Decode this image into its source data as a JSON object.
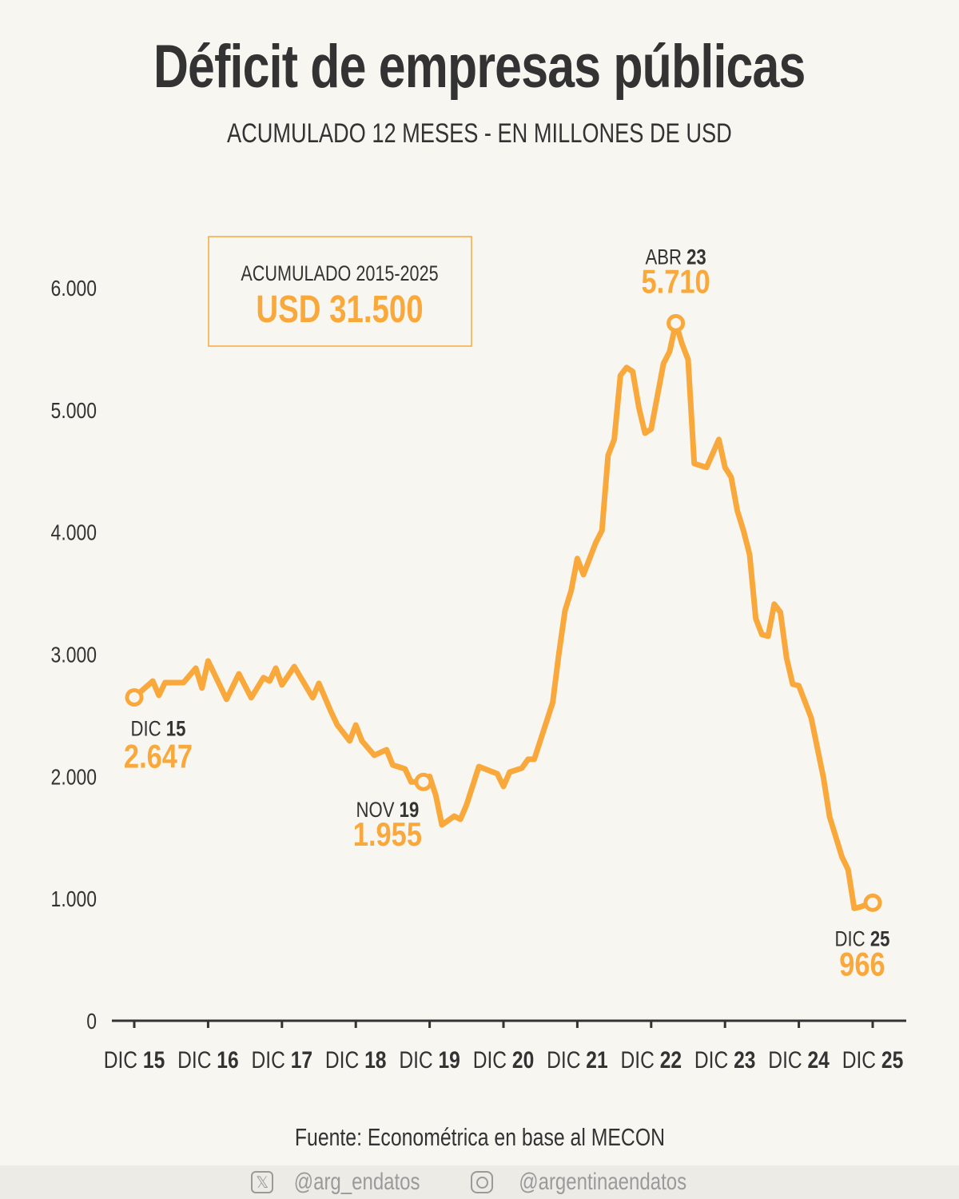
{
  "title": "Déficit de empresas públicas",
  "subtitle": "ACUMULADO 12 MESES - EN MILLONES DE USD",
  "source": "Fuente: Econométrica en base al MECON",
  "footer": {
    "twitter": "@arg_endatos",
    "instagram": "@argentinaendatos",
    "twitter_icon": "x-logo-icon",
    "instagram_icon": "instagram-icon"
  },
  "colors": {
    "line": "#f9a83c",
    "text": "#333333",
    "background": "#f7f6f1"
  },
  "chart_data": {
    "type": "line",
    "title": "Déficit de empresas públicas",
    "subtitle": "ACUMULADO 12 MESES - EN MILLONES DE USD",
    "ylim": [
      0,
      6000
    ],
    "xlim": [
      "2015-12",
      "2025-12"
    ],
    "grid": false,
    "yticks": [
      "0",
      "1.000",
      "2.000",
      "3.000",
      "4.000",
      "5.000",
      "6.000"
    ],
    "ytick_values": [
      0,
      1000,
      2000,
      3000,
      4000,
      5000,
      6000
    ],
    "xticks": [
      {
        "month": "DIC",
        "year": "15"
      },
      {
        "month": "DIC",
        "year": "16"
      },
      {
        "month": "DIC",
        "year": "17"
      },
      {
        "month": "DIC",
        "year": "18"
      },
      {
        "month": "DIC",
        "year": "19"
      },
      {
        "month": "DIC",
        "year": "20"
      },
      {
        "month": "DIC",
        "year": "21"
      },
      {
        "month": "DIC",
        "year": "22"
      },
      {
        "month": "DIC",
        "year": "23"
      },
      {
        "month": "DIC",
        "year": "24"
      },
      {
        "month": "DIC",
        "year": "25"
      }
    ],
    "series": [
      {
        "x": [
          "2015-12",
          "2016-03",
          "2016-04",
          "2016-05",
          "2016-08",
          "2016-10",
          "2016-11",
          "2016-12",
          "2017-03",
          "2017-05",
          "2017-07",
          "2017-09",
          "2017-10",
          "2017-11",
          "2017-12",
          "2018-02",
          "2018-05",
          "2018-06",
          "2018-08",
          "2018-09",
          "2018-11",
          "2018-12",
          "2019-01",
          "2019-03",
          "2019-05",
          "2019-06",
          "2019-08",
          "2019-09",
          "2019-11",
          "2019-12",
          "2020-01",
          "2020-02",
          "2020-04",
          "2020-05",
          "2020-06",
          "2020-08",
          "2020-11",
          "2020-12",
          "2021-01",
          "2021-03",
          "2021-04",
          "2021-05",
          "2021-08",
          "2021-09",
          "2021-10",
          "2021-11",
          "2021-12",
          "2022-01",
          "2022-03",
          "2022-04",
          "2022-05",
          "2022-06",
          "2022-07",
          "2022-08",
          "2022-09",
          "2022-10",
          "2022-11",
          "2022-12",
          "2023-02",
          "2023-03",
          "2023-04",
          "2023-05",
          "2023-06",
          "2023-07",
          "2023-09",
          "2023-11",
          "2023-12",
          "2024-01",
          "2024-02",
          "2024-03",
          "2024-04",
          "2024-05",
          "2024-06",
          "2024-07",
          "2024-08",
          "2024-09",
          "2024-10",
          "2024-11",
          "2024-12",
          "2025-02",
          "2025-04",
          "2025-05",
          "2025-07",
          "2025-08",
          "2025-09",
          "2025-10",
          "2025-11",
          "2025-12"
        ],
        "y": [
          2647,
          2781,
          2664,
          2768,
          2768,
          2886,
          2723,
          2945,
          2631,
          2840,
          2644,
          2808,
          2781,
          2886,
          2749,
          2899,
          2644,
          2762,
          2526,
          2421,
          2291,
          2421,
          2291,
          2173,
          2219,
          2094,
          2062,
          1955,
          1955,
          2000,
          1846,
          1603,
          1675,
          1649,
          1767,
          2081,
          2022,
          1918,
          2035,
          2068,
          2140,
          2140,
          2605,
          3004,
          3357,
          3521,
          3783,
          3652,
          3914,
          4012,
          4627,
          4758,
          5281,
          5347,
          5314,
          5020,
          4810,
          4843,
          5380,
          5478,
          5710,
          5543,
          5412,
          4561,
          4529,
          4758,
          4529,
          4450,
          4175,
          4012,
          3815,
          3292,
          3161,
          3148,
          3410,
          3344,
          2971,
          2755,
          2742,
          2480,
          1990,
          1669,
          1342,
          1237,
          920,
          932,
          950,
          966
        ]
      }
    ],
    "annotations": [
      {
        "x": "2015-12",
        "month": "DIC",
        "year": "15",
        "value": "2.647"
      },
      {
        "x": "2019-11",
        "month": "NOV",
        "year": "19",
        "value": "1.955"
      },
      {
        "x": "2023-04",
        "month": "ABR",
        "year": "23",
        "value": "5.710"
      },
      {
        "x": "2025-12",
        "month": "DIC",
        "year": "25",
        "value": "966"
      }
    ],
    "highlight_box": {
      "label": "ACUMULADO 2015-2025",
      "value": "USD 31.500"
    }
  }
}
